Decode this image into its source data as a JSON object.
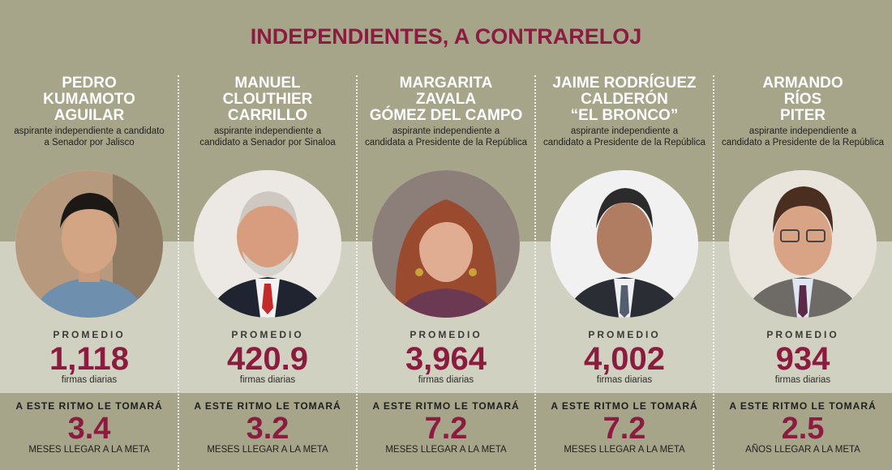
{
  "header": {
    "title": "INDEPENDIENTES, A CONTRARELOJ"
  },
  "colors": {
    "accent": "#8b1c3f",
    "band_dark": "#a6a58a",
    "band_light": "#d1d1c1",
    "name_text": "#ffffff"
  },
  "candidates": [
    {
      "name_lines": [
        "PEDRO",
        "KUMAMOTO",
        "AGUILAR"
      ],
      "role_lines": [
        "aspirante independiente a candidato",
        "a Senador por Jalisco"
      ],
      "photo_icon": "portrait-photo",
      "promedio_label": "PROMEDIO",
      "promedio_value": "1,118",
      "promedio_unit": "firmas diarias",
      "ritmo_label": "A ESTE RITMO LE TOMARÁ",
      "ritmo_value": "3.4",
      "ritmo_unit": "MESES LLEGAR A LA META"
    },
    {
      "name_lines": [
        "MANUEL",
        "CLOUTHIER",
        "CARRILLO"
      ],
      "role_lines": [
        "aspirante independiente a",
        "candidato a Senador por Sinaloa"
      ],
      "photo_icon": "portrait-photo",
      "promedio_label": "PROMEDIO",
      "promedio_value": "420.9",
      "promedio_unit": "firmas diarias",
      "ritmo_label": "A ESTE RITMO LE TOMARÁ",
      "ritmo_value": "3.2",
      "ritmo_unit": "MESES LLEGAR A LA META"
    },
    {
      "name_lines": [
        "MARGARITA",
        "ZAVALA",
        "GÓMEZ DEL CAMPO"
      ],
      "role_lines": [
        "aspirante independiente a",
        "candidata a Presidente de la República"
      ],
      "photo_icon": "portrait-photo",
      "promedio_label": "PROMEDIO",
      "promedio_value": "3,964",
      "promedio_unit": "firmas diarias",
      "ritmo_label": "A ESTE RITMO LE TOMARÁ",
      "ritmo_value": "7.2",
      "ritmo_unit": "MESES LLEGAR A LA META"
    },
    {
      "name_lines": [
        "JAIME RODRÍGUEZ",
        "CALDERÓN",
        "“EL BRONCO”"
      ],
      "role_lines": [
        "aspirante independiente a",
        "candidato a Presidente de la República"
      ],
      "photo_icon": "portrait-photo",
      "promedio_label": "PROMEDIO",
      "promedio_value": "4,002",
      "promedio_unit": "firmas diarias",
      "ritmo_label": "A ESTE RITMO LE TOMARÁ",
      "ritmo_value": "7.2",
      "ritmo_unit": "MESES LLEGAR A LA META"
    },
    {
      "name_lines": [
        "ARMANDO",
        "RÍOS",
        "PITER"
      ],
      "role_lines": [
        "aspirante independiente a",
        "candidato a Presidente de la República"
      ],
      "photo_icon": "portrait-photo",
      "promedio_label": "PROMEDIO",
      "promedio_value": "934",
      "promedio_unit": "firmas diarias",
      "ritmo_label": "A ESTE RITMO LE TOMARÁ",
      "ritmo_value": "2.5",
      "ritmo_unit": "AÑOS LLEGAR A LA META"
    }
  ]
}
